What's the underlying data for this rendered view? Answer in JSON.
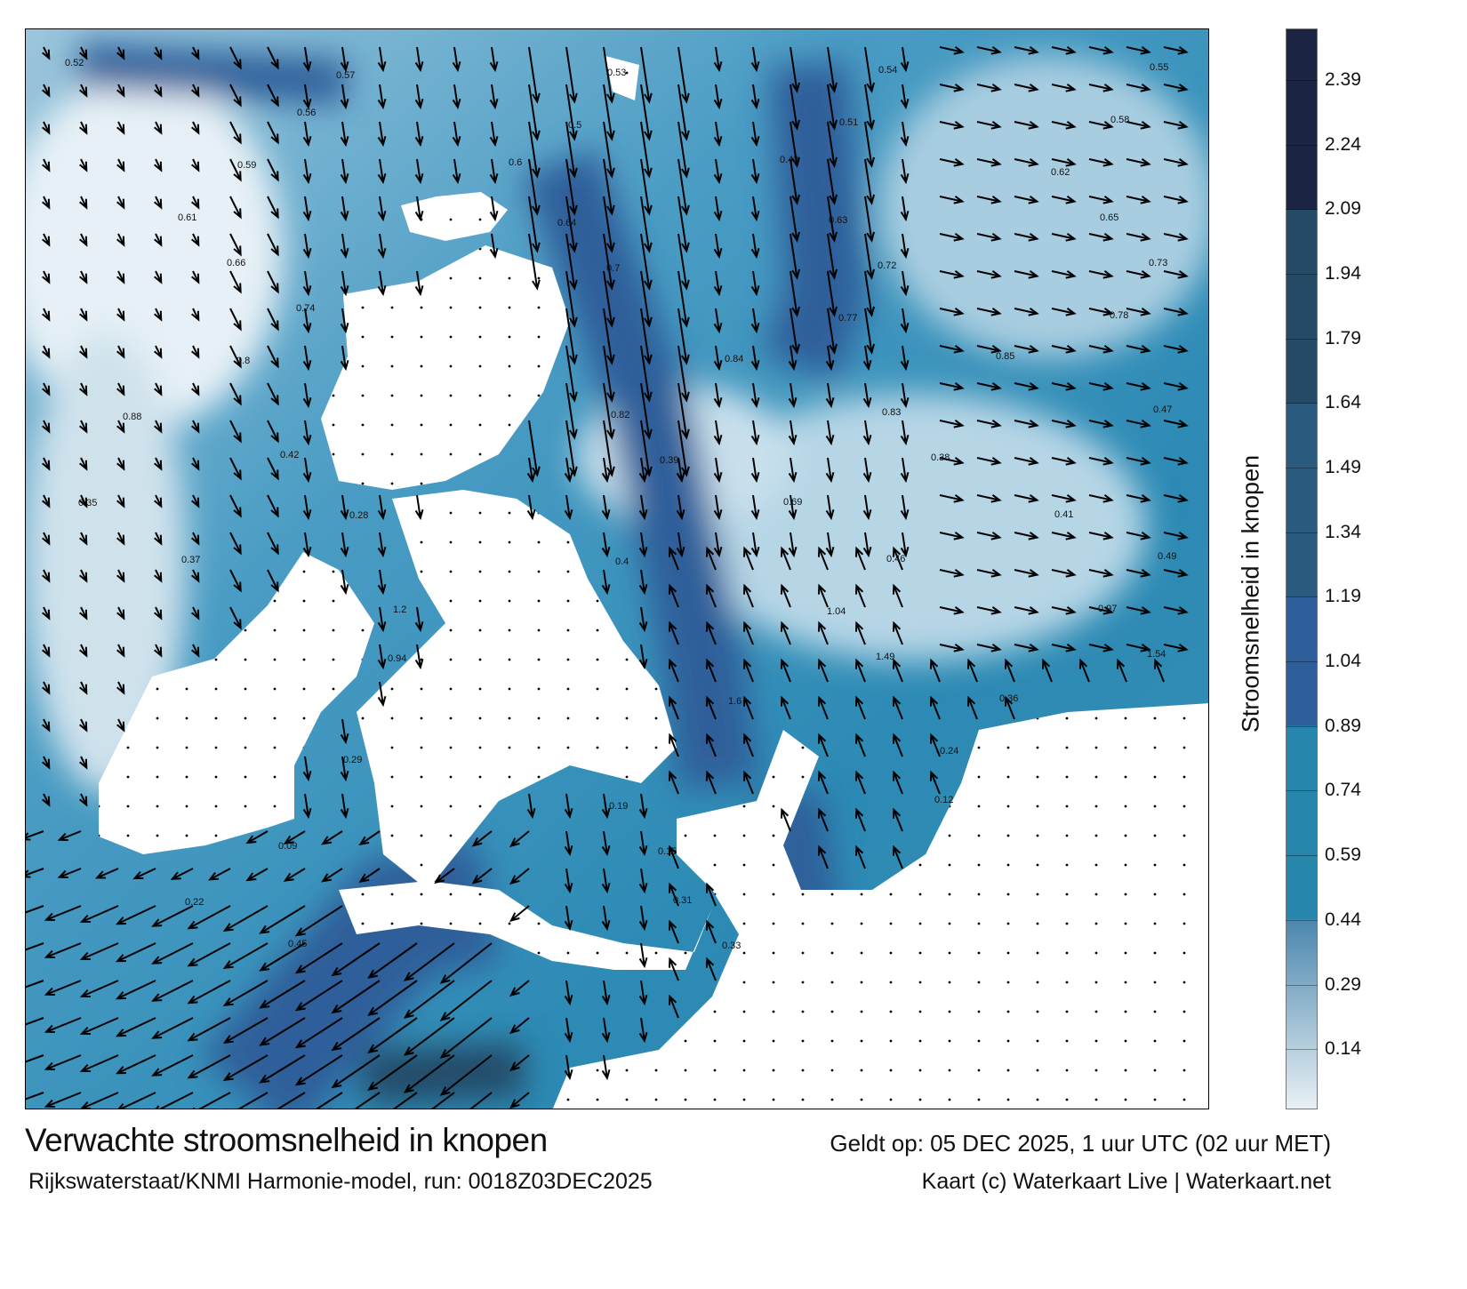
{
  "map": {
    "title": "Verwachte stroomsnelheid in knopen",
    "valid_time": "Geldt op: 05 DEC 2025, 1 uur UTC (02 uur MET)",
    "source": "Rijkswaterstaat/KNMI Harmonie-model, run: 0018Z03DEC2025",
    "credit": "Kaart (c) Waterkaart Live | Waterkaart.net",
    "sample_speed_labels": [
      "0.52",
      "0.57",
      "0.53",
      "0.54",
      "0.55",
      "0.56",
      "0.5",
      "0.51",
      "0.58",
      "0.59",
      "0.6",
      "0.43",
      "0.62",
      "0.61",
      "0.64",
      "0.63",
      "0.65",
      "0.66",
      "0.7",
      "0.72",
      "0.73",
      "0.74",
      "0.77",
      "0.78",
      "0.8",
      "0.84",
      "0.85",
      "0.88",
      "0.82",
      "0.83",
      "0.47",
      "0.42",
      "0.39",
      "0.38",
      "0.35",
      "0.28",
      "0.69",
      "0.41",
      "0.37",
      "0.4",
      "0.46",
      "0.49",
      "1.2",
      "1.04",
      "0.97",
      "0.94",
      "1.49",
      "1.54",
      "1.6",
      "0.36",
      "0.29",
      "0.24",
      "0.19",
      "0.12",
      "0.09",
      "0.15",
      "0.22",
      "0.31",
      "0.45",
      "0.33"
    ]
  },
  "colorbar": {
    "label": "Stroomsnelheid in knopen",
    "ticks": [
      "2.39",
      "2.24",
      "2.09",
      "1.94",
      "1.79",
      "1.64",
      "1.49",
      "1.34",
      "1.19",
      "1.04",
      "0.89",
      "0.74",
      "0.59",
      "0.44",
      "0.29",
      "0.14"
    ],
    "range": [
      0,
      2.51
    ],
    "bands": [
      {
        "from": 2.09,
        "to": 2.51,
        "color": "#1c2444"
      },
      {
        "from": 1.64,
        "to": 2.09,
        "color": "#244a66"
      },
      {
        "from": 1.19,
        "to": 1.64,
        "color": "#2a5b7e"
      },
      {
        "from": 0.89,
        "to": 1.19,
        "color": "#2e5f9a"
      },
      {
        "from": 0.44,
        "to": 0.89,
        "color": "#2786ab"
      },
      {
        "from": 0.0,
        "to": 0.44,
        "color": "#e9f0f5"
      }
    ]
  },
  "colors": {
    "land": "#ffffff",
    "sea_shallow": "#dbe8f0",
    "sea_mid": "#2a8db8",
    "sea_deep": "#2e5f9a",
    "arrow": "#000000"
  }
}
